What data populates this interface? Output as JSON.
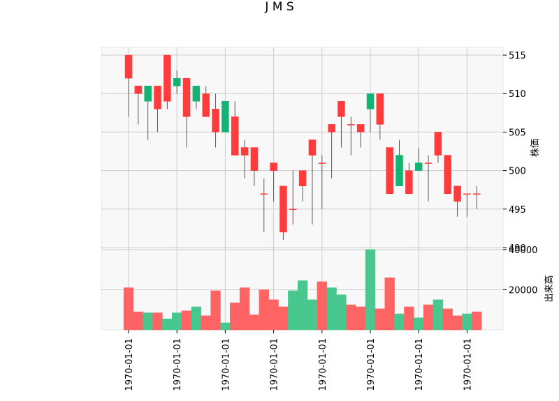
{
  "chart_data": [
    {
      "type": "candlestick",
      "title": "J M S",
      "ylabel": "株価",
      "ylim": [
        490,
        516
      ],
      "yticks": [
        490,
        495,
        500,
        505,
        510,
        515
      ],
      "grid": true,
      "up_color": "#ff3b3b",
      "down_color": "#15b371",
      "candles": [
        {
          "open": 512,
          "high": 515,
          "low": 507,
          "close": 515
        },
        {
          "open": 510,
          "high": 511,
          "low": 506,
          "close": 511
        },
        {
          "open": 511,
          "high": 511,
          "low": 504,
          "close": 509
        },
        {
          "open": 508,
          "high": 511,
          "low": 505,
          "close": 511
        },
        {
          "open": 509,
          "high": 515,
          "low": 508,
          "close": 515
        },
        {
          "open": 512,
          "high": 513,
          "low": 510,
          "close": 511
        },
        {
          "open": 507,
          "high": 512,
          "low": 503,
          "close": 512
        },
        {
          "open": 511,
          "high": 511,
          "low": 508,
          "close": 509
        },
        {
          "open": 507,
          "high": 511,
          "low": 507,
          "close": 510
        },
        {
          "open": 505,
          "high": 510,
          "low": 503,
          "close": 508
        },
        {
          "open": 509,
          "high": 509,
          "low": 505,
          "close": 505
        },
        {
          "open": 502,
          "high": 509,
          "low": 502,
          "close": 507
        },
        {
          "open": 502,
          "high": 504,
          "low": 499,
          "close": 503
        },
        {
          "open": 500,
          "high": 503,
          "low": 498,
          "close": 503
        },
        {
          "open": 497,
          "high": 499,
          "low": 492,
          "close": 497
        },
        {
          "open": 500,
          "high": 501,
          "low": 496,
          "close": 501
        },
        {
          "open": 492,
          "high": 498,
          "low": 491,
          "close": 498
        },
        {
          "open": 495,
          "high": 500,
          "low": 493,
          "close": 495
        },
        {
          "open": 498,
          "high": 500,
          "low": 496,
          "close": 500
        },
        {
          "open": 502,
          "high": 504,
          "low": 493,
          "close": 504
        },
        {
          "open": 501,
          "high": 502,
          "low": 495,
          "close": 501
        },
        {
          "open": 505,
          "high": 506,
          "low": 499,
          "close": 506
        },
        {
          "open": 507,
          "high": 509,
          "low": 503,
          "close": 509
        },
        {
          "open": 506,
          "high": 507,
          "low": 502,
          "close": 506
        },
        {
          "open": 505,
          "high": 506,
          "low": 503,
          "close": 506
        },
        {
          "open": 510,
          "high": 510,
          "low": 505,
          "close": 508
        },
        {
          "open": 506,
          "high": 510,
          "low": 504,
          "close": 510
        },
        {
          "open": 497,
          "high": 503,
          "low": 497,
          "close": 503
        },
        {
          "open": 502,
          "high": 504,
          "low": 498,
          "close": 498
        },
        {
          "open": 497,
          "high": 501,
          "low": 497,
          "close": 500
        },
        {
          "open": 501,
          "high": 503,
          "low": 500,
          "close": 500
        },
        {
          "open": 501,
          "high": 502,
          "low": 496,
          "close": 501
        },
        {
          "open": 502,
          "high": 505,
          "low": 501,
          "close": 505
        },
        {
          "open": 497,
          "high": 502,
          "low": 497,
          "close": 502
        },
        {
          "open": 496,
          "high": 498,
          "low": 494,
          "close": 498
        },
        {
          "open": 497,
          "high": 497,
          "low": 494,
          "close": 497
        },
        {
          "open": 497,
          "high": 498,
          "low": 495,
          "close": 497
        }
      ]
    },
    {
      "type": "bar",
      "ylabel": "出来高",
      "ylim": [
        0,
        41000
      ],
      "yticks": [
        20000,
        40000
      ],
      "grid": true,
      "values": [
        21000,
        9000,
        8500,
        8500,
        5500,
        8500,
        9500,
        11500,
        7000,
        19500,
        3500,
        13500,
        21000,
        7500,
        20000,
        15000,
        11500,
        19500,
        24500,
        15000,
        24000,
        21000,
        17500,
        12500,
        11500,
        40000,
        10500,
        26000,
        8000,
        11500,
        6000,
        12500,
        15000,
        10500,
        7000,
        8000,
        9000
      ],
      "bar_colors": [
        "up",
        "up",
        "down",
        "up",
        "down",
        "down",
        "up",
        "down",
        "up",
        "up",
        "down",
        "up",
        "up",
        "up",
        "up",
        "up",
        "up",
        "down",
        "down",
        "down",
        "up",
        "down",
        "down",
        "up",
        "up",
        "down",
        "up",
        "up",
        "down",
        "up",
        "down",
        "up",
        "down",
        "up",
        "up",
        "down",
        "up"
      ],
      "xlabels": [
        "1970-01-01",
        "1970-01-01",
        "1970-01-01",
        "1970-01-01",
        "1970-01-01",
        "1970-01-01",
        "1970-01-01",
        "1970-01-01"
      ]
    }
  ]
}
